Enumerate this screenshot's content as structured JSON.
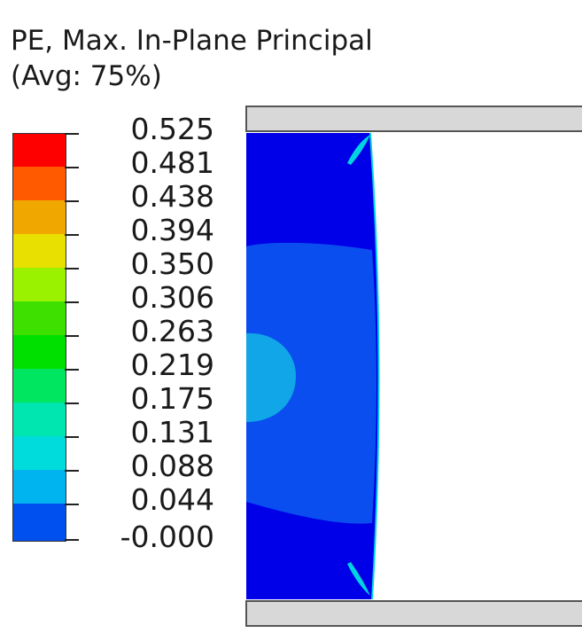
{
  "legend": {
    "title_line1": "PE, Max. In-Plane Principal",
    "title_line2": "(Avg: 75%)",
    "levels": [
      "0.525",
      "0.481",
      "0.438",
      "0.394",
      "0.350",
      "0.306",
      "0.263",
      "0.219",
      "0.175",
      "0.131",
      "0.088",
      "0.044",
      "-0.000"
    ],
    "colors": [
      "#ff0000",
      "#ff5a00",
      "#f0a800",
      "#e8e000",
      "#9af200",
      "#3ee000",
      "#00e000",
      "#00e660",
      "#00e6b0",
      "#00dcdc",
      "#00b4f0",
      "#0050f0",
      "#0000f0"
    ]
  },
  "model": {
    "colors": {
      "plate": "#d8d8d8",
      "plate_edge": "#555555",
      "specimen_outer": "#0000e8",
      "specimen_mid": "#0a4ef0",
      "specimen_core": "#10a6e8",
      "edge_highlight": "#00d4e0"
    }
  }
}
